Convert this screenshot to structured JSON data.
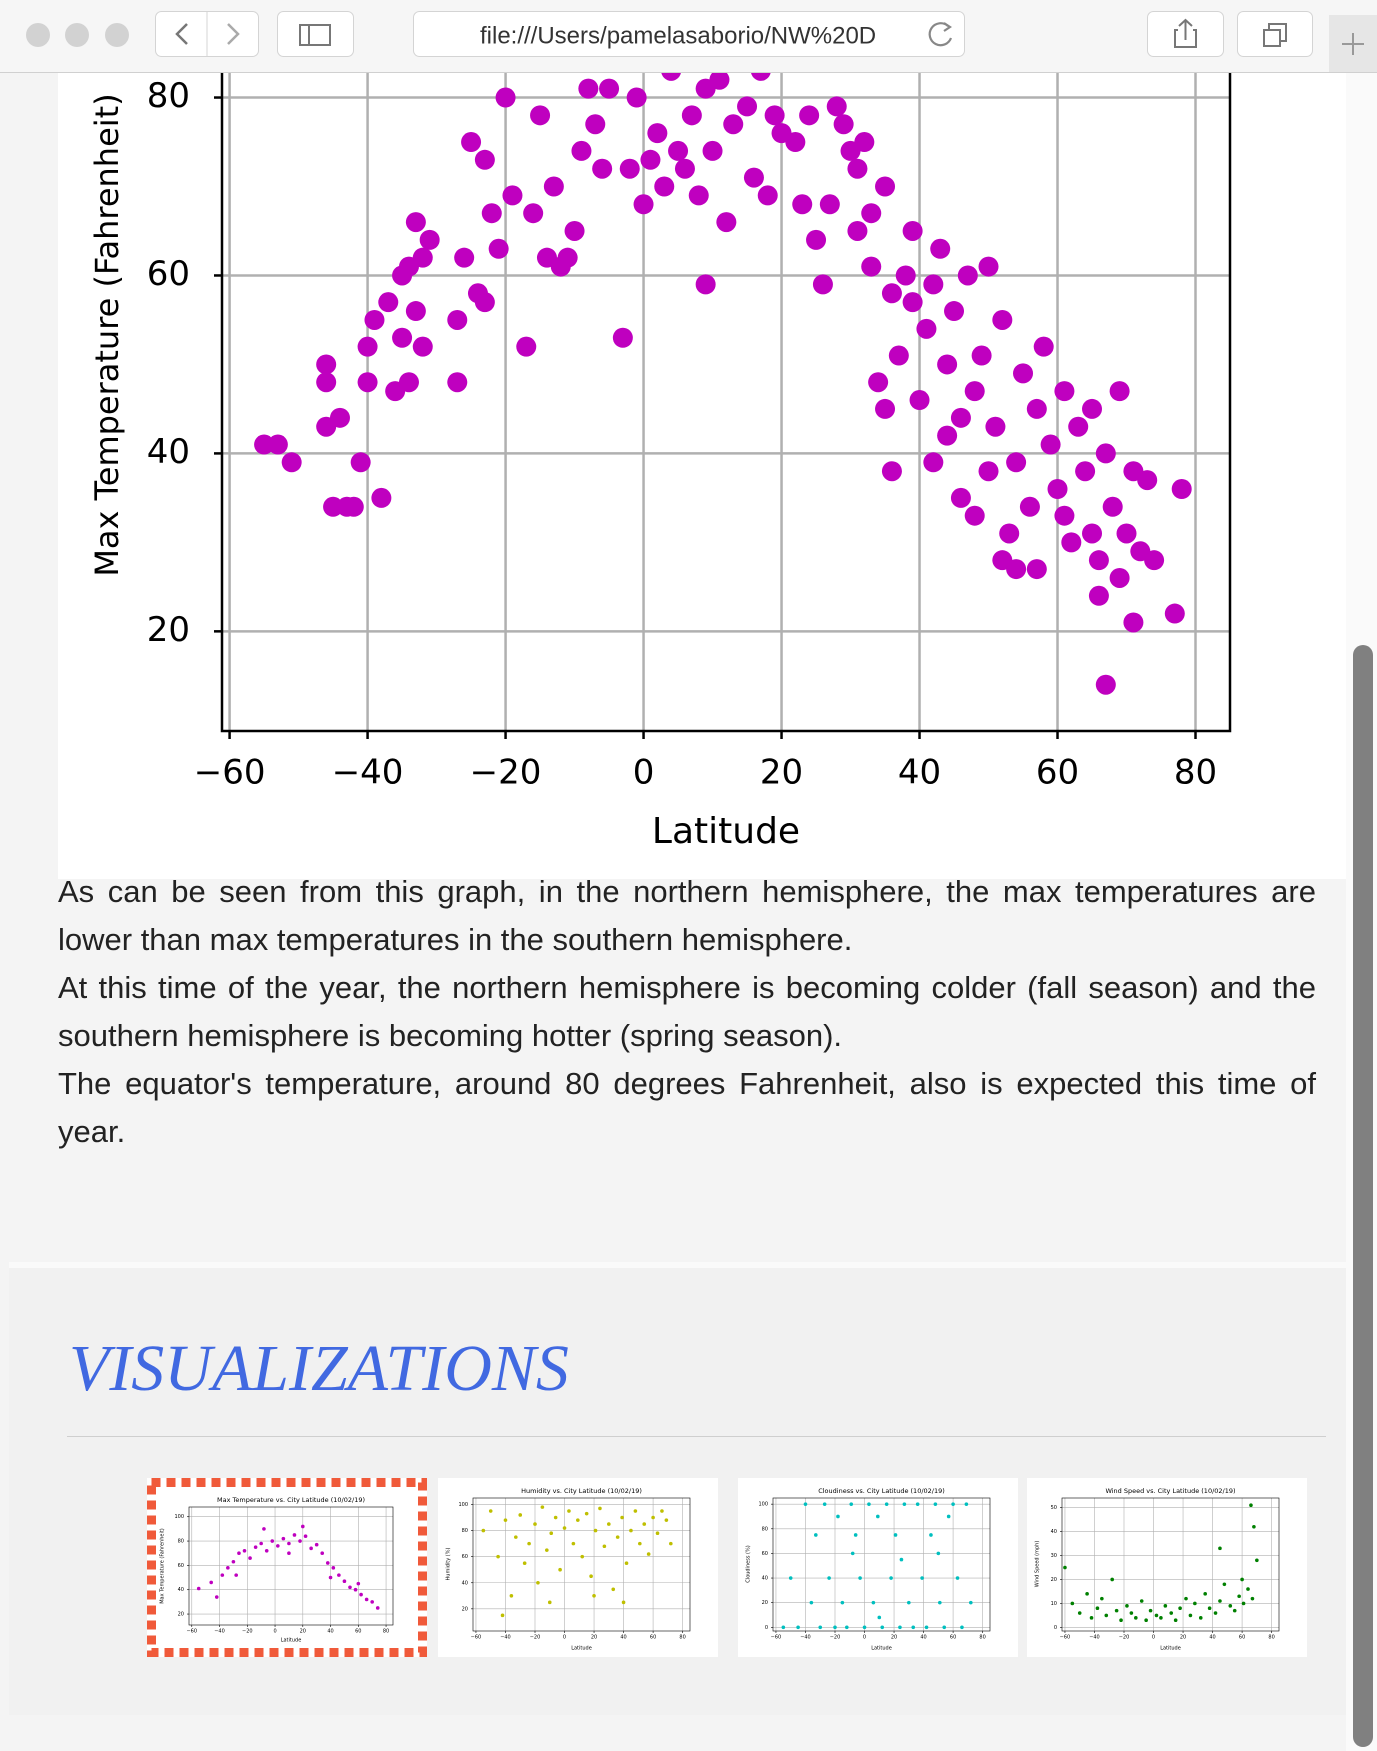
{
  "browser": {
    "url": "file:///Users/pamelasaborio/NW%20D"
  },
  "chart_data": [
    {
      "type": "scatter",
      "xlabel": "Latitude",
      "ylabel": "Max Temperature (Fahrenheit)",
      "color": "#bf00bf",
      "grid": true,
      "xlim": [
        -61.1,
        85
      ],
      "ylim": [
        8.8,
        104
      ],
      "xticks": [
        {
          "value": -60,
          "label": "−60"
        },
        {
          "value": -40,
          "label": "−40"
        },
        {
          "value": -20,
          "label": "−20"
        },
        0,
        20,
        40,
        60,
        80
      ],
      "yticks": [
        20,
        40,
        60,
        80
      ],
      "x": [
        -55,
        -53,
        -51,
        -46,
        -46,
        -46,
        -45,
        -44,
        -43,
        -42,
        -41,
        -40,
        -40,
        -38,
        -39,
        -37,
        -36,
        -35,
        -35,
        -34,
        -34,
        -33,
        -33,
        -32,
        -32,
        -31,
        -27,
        -27,
        -26,
        -25,
        -24,
        -23,
        -23,
        -22,
        -21,
        -20,
        -19,
        -17,
        -16,
        -15,
        -14,
        -13,
        -12,
        -11,
        -10,
        -9,
        -8,
        -7,
        -6,
        -5,
        -3,
        -2,
        -1,
        0,
        1,
        2,
        3,
        4,
        5,
        6,
        7,
        8,
        9,
        9,
        10,
        11,
        12,
        13,
        14,
        15,
        16,
        17,
        18,
        19,
        20,
        21,
        22,
        23,
        24,
        25,
        26,
        27,
        28,
        29,
        30,
        31,
        31,
        32,
        33,
        33,
        34,
        35,
        35,
        36,
        36,
        37,
        38,
        39,
        39,
        40,
        41,
        42,
        42,
        43,
        44,
        44,
        45,
        46,
        46,
        47,
        48,
        48,
        49,
        50,
        50,
        51,
        52,
        52,
        53,
        54,
        54,
        55,
        56,
        57,
        57,
        58,
        59,
        60,
        61,
        61,
        62,
        63,
        64,
        65,
        65,
        66,
        66,
        67,
        67,
        68,
        69,
        69,
        70,
        71,
        71,
        72,
        73,
        74,
        77,
        78
      ],
      "values": [
        41,
        41,
        39,
        50,
        48,
        43,
        34,
        44,
        34,
        34,
        39,
        52,
        48,
        35,
        55,
        57,
        47,
        60,
        53,
        61,
        48,
        56,
        66,
        62,
        52,
        64,
        48,
        55,
        62,
        75,
        58,
        73,
        57,
        67,
        63,
        80,
        69,
        52,
        67,
        78,
        62,
        70,
        61,
        62,
        65,
        74,
        81,
        77,
        72,
        81,
        53,
        72,
        80,
        68,
        73,
        76,
        70,
        83,
        74,
        72,
        78,
        69,
        59,
        81,
        74,
        82,
        66,
        77,
        85,
        79,
        71,
        83,
        69,
        78,
        76,
        84,
        75,
        68,
        78,
        64,
        59,
        68,
        79,
        77,
        74,
        72,
        65,
        75,
        61,
        67,
        48,
        45,
        70,
        38,
        58,
        51,
        60,
        65,
        57,
        46,
        54,
        59,
        39,
        63,
        50,
        42,
        56,
        35,
        44,
        60,
        33,
        47,
        51,
        38,
        61,
        43,
        55,
        28,
        31,
        39,
        27,
        49,
        34,
        27,
        45,
        52,
        41,
        36,
        33,
        47,
        30,
        43,
        38,
        45,
        31,
        28,
        24,
        14,
        40,
        34,
        47,
        26,
        31,
        21,
        38,
        29,
        37,
        28,
        22,
        36
      ]
    },
    {
      "type": "scatter",
      "title": "Max Temperature vs. City Latitude (10/02/19)",
      "xlabel": "Latitude",
      "ylabel": "Max Temperature (Fahrenheit)",
      "color": "#bf00bf",
      "grid": true,
      "xlim": [
        -62,
        85
      ],
      "ylim": [
        11,
        108
      ],
      "xticks": [
        {
          "value": -60,
          "label": "−60"
        },
        {
          "value": -40,
          "label": "−40"
        },
        {
          "value": -20,
          "label": "−20"
        },
        0,
        20,
        40,
        60,
        80
      ],
      "yticks": [
        20,
        40,
        60,
        80,
        100
      ],
      "x": [
        -55,
        -46,
        -42,
        -38,
        -34,
        -30,
        -26,
        -22,
        -18,
        -14,
        -10,
        -6,
        -2,
        2,
        6,
        10,
        14,
        18,
        22,
        26,
        30,
        34,
        38,
        42,
        46,
        50,
        54,
        58,
        62,
        66,
        70,
        74,
        -8,
        20,
        10,
        40,
        60,
        -28
      ],
      "values": [
        41,
        46,
        34,
        52,
        58,
        63,
        70,
        72,
        66,
        75,
        78,
        72,
        80,
        76,
        82,
        78,
        85,
        80,
        84,
        74,
        77,
        70,
        62,
        58,
        52,
        47,
        42,
        40,
        36,
        32,
        30,
        25,
        90,
        92,
        70,
        50,
        45,
        52
      ]
    },
    {
      "type": "scatter",
      "title": "Humidity vs. City Latitude (10/02/19)",
      "xlabel": "Latitude",
      "ylabel": "Humidity (%)",
      "color": "#bfbf00",
      "grid": true,
      "xlim": [
        -62,
        85
      ],
      "ylim": [
        3,
        105
      ],
      "xticks": [
        {
          "value": -60,
          "label": "−60"
        },
        {
          "value": -40,
          "label": "−40"
        },
        {
          "value": -20,
          "label": "−20"
        },
        0,
        20,
        40,
        60,
        80
      ],
      "yticks": [
        20,
        40,
        60,
        80,
        100
      ],
      "x": [
        -55,
        -50,
        -45,
        -40,
        -36,
        -33,
        -30,
        -27,
        -24,
        -20,
        -18,
        -15,
        -12,
        -9,
        -6,
        -3,
        0,
        3,
        6,
        9,
        12,
        15,
        18,
        21,
        24,
        27,
        30,
        33,
        36,
        39,
        42,
        45,
        48,
        51,
        54,
        57,
        60,
        63,
        66,
        69,
        72,
        -42,
        -10,
        20,
        40
      ],
      "values": [
        80,
        95,
        60,
        88,
        30,
        75,
        92,
        55,
        70,
        85,
        40,
        98,
        65,
        78,
        90,
        50,
        82,
        95,
        70,
        88,
        60,
        93,
        45,
        80,
        97,
        68,
        85,
        35,
        75,
        90,
        55,
        80,
        95,
        70,
        85,
        62,
        90,
        78,
        95,
        88,
        70,
        15,
        25,
        30,
        25
      ]
    },
    {
      "type": "scatter",
      "title": "Cloudiness vs. City Latitude (10/02/19)",
      "xlabel": "Latitude",
      "ylabel": "Cloudiness (%)",
      "color": "#00bfbf",
      "grid": true,
      "xlim": [
        -62,
        85
      ],
      "ylim": [
        -3,
        105
      ],
      "xticks": [
        {
          "value": -60,
          "label": "−60"
        },
        {
          "value": -40,
          "label": "−40"
        },
        {
          "value": -20,
          "label": "−20"
        },
        0,
        20,
        40,
        60,
        80
      ],
      "yticks": [
        0,
        20,
        40,
        60,
        80,
        100
      ],
      "x": [
        -55,
        -50,
        -45,
        -40,
        -36,
        -33,
        -30,
        -27,
        -24,
        -20,
        -18,
        -15,
        -12,
        -9,
        -6,
        -3,
        0,
        3,
        6,
        9,
        12,
        15,
        18,
        21,
        24,
        27,
        30,
        33,
        36,
        39,
        42,
        45,
        48,
        51,
        54,
        57,
        60,
        63,
        66,
        69,
        72,
        -8,
        25,
        50,
        10
      ],
      "values": [
        0,
        40,
        0,
        100,
        20,
        75,
        0,
        100,
        40,
        0,
        90,
        20,
        0,
        100,
        75,
        40,
        0,
        100,
        20,
        90,
        0,
        100,
        40,
        75,
        0,
        100,
        20,
        0,
        100,
        40,
        0,
        75,
        100,
        20,
        0,
        90,
        100,
        40,
        0,
        100,
        20,
        60,
        55,
        60,
        8
      ]
    },
    {
      "type": "scatter",
      "title": "Wind Speed vs. City Latitude (10/02/19)",
      "xlabel": "Latitude",
      "ylabel": "Wind Speed (mph)",
      "color": "#008000",
      "grid": true,
      "xlim": [
        -62,
        85
      ],
      "ylim": [
        -1.5,
        54
      ],
      "xticks": [
        {
          "value": -60,
          "label": "−60"
        },
        {
          "value": -40,
          "label": "−40"
        },
        {
          "value": -20,
          "label": "−20"
        },
        0,
        20,
        40,
        60,
        80
      ],
      "yticks": [
        0,
        10,
        20,
        30,
        40,
        50
      ],
      "x": [
        -55,
        -50,
        -45,
        -42,
        -38,
        -35,
        -32,
        -28,
        -25,
        -22,
        -18,
        -15,
        -12,
        -8,
        -5,
        -2,
        2,
        5,
        8,
        12,
        15,
        18,
        22,
        25,
        28,
        32,
        35,
        38,
        42,
        45,
        48,
        52,
        55,
        58,
        61,
        64,
        67,
        70,
        66,
        68,
        60,
        -60,
        45
      ],
      "values": [
        10,
        6,
        14,
        4,
        8,
        12,
        5,
        20,
        7,
        3,
        9,
        6,
        4,
        11,
        3,
        7,
        5,
        4,
        9,
        6,
        3,
        8,
        12,
        5,
        10,
        4,
        14,
        8,
        6,
        11,
        18,
        9,
        7,
        13,
        10,
        16,
        12,
        28,
        51,
        42,
        20,
        25,
        33
      ]
    }
  ],
  "text": {
    "paragraphs": [
      "As can be seen from this graph, in the northern hemisphere, the max temperatures are lower than max temperatures in the southern hemisphere.",
      "At this time of the year, the northern hemisphere is becoming colder (fall season) and the southern hemisphere is becoming hotter (spring season).",
      "The equator's temperature, around 80 degrees Fahrenheit, also is expected this time of year."
    ]
  },
  "section": {
    "heading": "VISUALIZATIONS"
  }
}
